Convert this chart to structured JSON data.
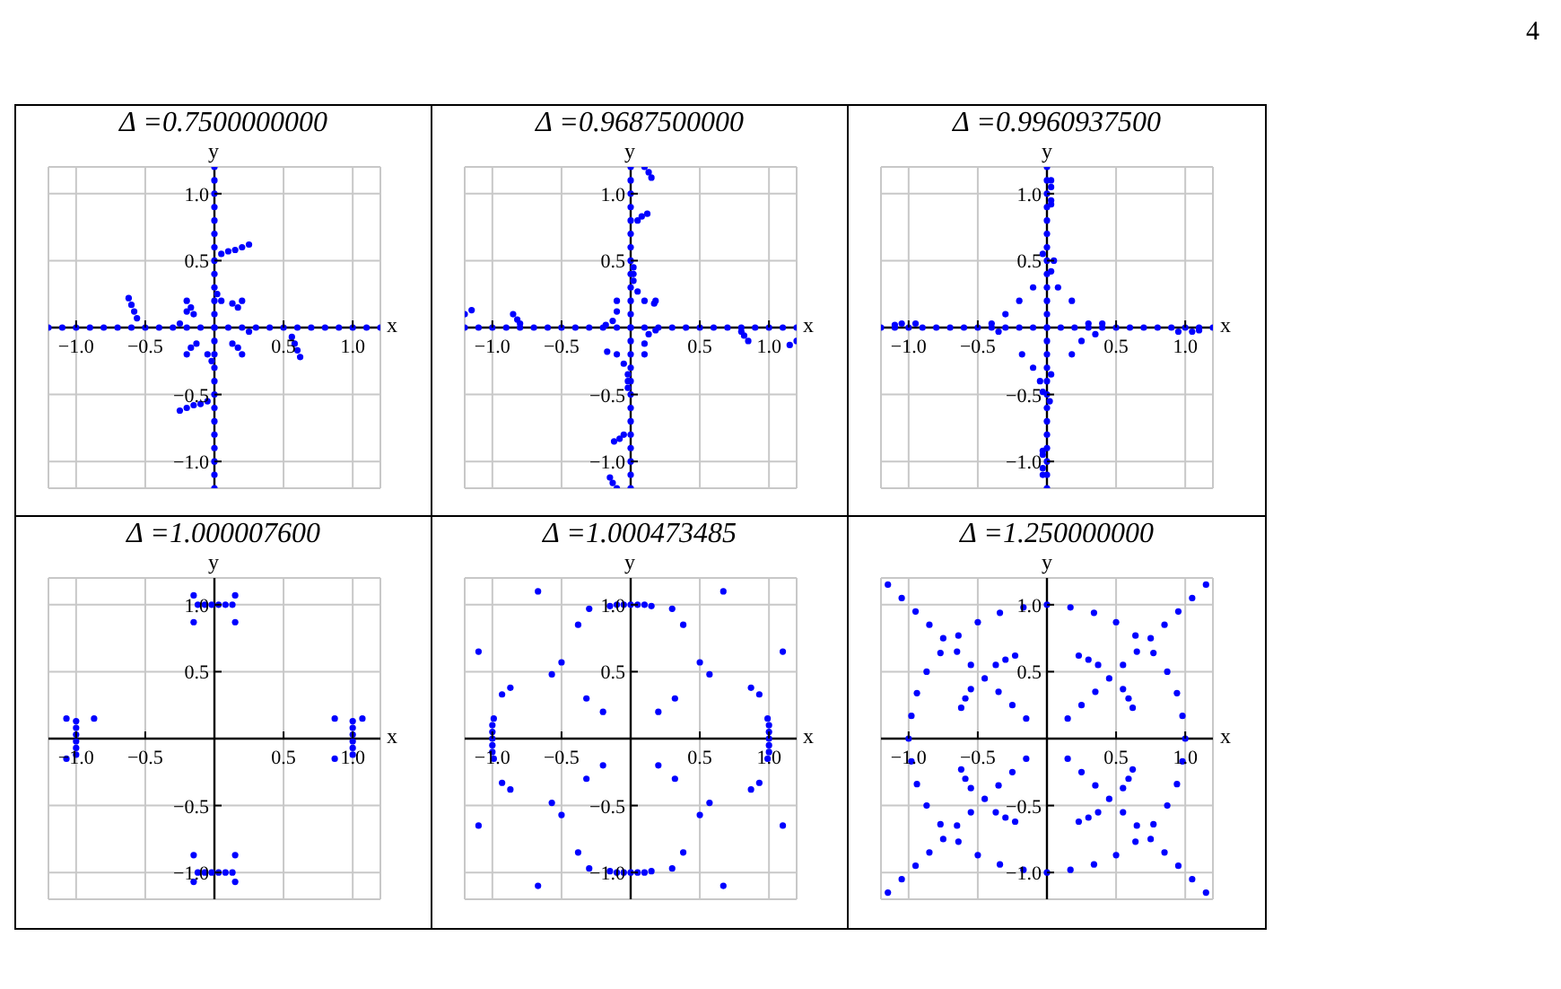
{
  "chart_data": [
    {
      "type": "scatter",
      "title": "Δ =0.7500000000",
      "xlabel": "x",
      "ylabel": "y",
      "annotations": [
        "4"
      ],
      "xlim": [
        -1.2,
        1.2
      ],
      "ylim": [
        -1.2,
        1.2
      ],
      "grid": true,
      "marker": "circle",
      "xticks": [
        {
          "value": -1,
          "label": "−1.0"
        },
        {
          "value": -0.5,
          "label": "−0.5"
        },
        {
          "value": 0.5,
          "label": "0.5"
        },
        {
          "value": 1,
          "label": "1.0"
        }
      ],
      "yticks": [
        {
          "value": -1,
          "label": "−1.0"
        },
        {
          "value": -0.5,
          "label": "−0.5"
        },
        {
          "value": 0.5,
          "label": "0.5"
        },
        {
          "value": 1,
          "label": "1.0"
        }
      ],
      "series": [
        {
          "color": "#0000ff",
          "x": [
            -1.2,
            -1.1,
            -1.0,
            -0.9,
            -0.8,
            -0.7,
            -0.6,
            -0.5,
            -0.4,
            -0.3,
            -0.2,
            -0.1,
            0,
            0.1,
            0.2,
            0.3,
            0.4,
            0.5,
            0.6,
            0.7,
            0.8,
            0.9,
            1.0,
            1.1,
            1.2
          ],
          "values": [
            0,
            0,
            0,
            0,
            0,
            0,
            0,
            0,
            0,
            0,
            0,
            0,
            0,
            0,
            0,
            0,
            0,
            0,
            0,
            0,
            0,
            0,
            0,
            0,
            0
          ]
        },
        {
          "color": "#0000ff",
          "x": [
            0,
            0,
            0,
            0,
            0,
            0,
            0,
            0,
            0,
            0,
            0,
            0,
            0,
            0,
            0,
            0,
            0,
            0,
            0,
            0,
            0,
            0,
            0,
            0,
            0
          ],
          "values": [
            -1.2,
            -1.1,
            -1.0,
            -0.9,
            -0.8,
            -0.7,
            -0.6,
            -0.5,
            -0.4,
            -0.3,
            -0.2,
            -0.1,
            0,
            0.1,
            0.2,
            0.3,
            0.4,
            0.5,
            0.6,
            0.7,
            0.8,
            0.9,
            1.0,
            1.1,
            1.2
          ]
        },
        {
          "color": "#0000ff",
          "x": [
            0.05,
            0.1,
            0.15,
            0.2,
            0.25,
            -0.05,
            -0.1,
            -0.15,
            -0.2,
            -0.25,
            -0.62,
            -0.6,
            -0.58,
            -0.56,
            0.62,
            0.6,
            0.58,
            0.56,
            -0.2,
            -0.17,
            -0.15,
            -0.2,
            0.2,
            0.17,
            0.13,
            0.02,
            0.05,
            -0.2,
            -0.17,
            -0.13,
            0.2,
            0.17,
            0.13,
            -0.02,
            -0.05,
            -0.25,
            0.25
          ],
          "values": [
            0.55,
            0.57,
            0.58,
            0.6,
            0.62,
            -0.55,
            -0.57,
            -0.58,
            -0.6,
            -0.62,
            0.22,
            0.17,
            0.12,
            0.07,
            -0.22,
            -0.17,
            -0.12,
            -0.07,
            0.2,
            0.15,
            0.1,
            0.12,
            0.2,
            0.15,
            0.18,
            0.25,
            0.2,
            -0.2,
            -0.15,
            -0.12,
            -0.2,
            -0.15,
            -0.12,
            -0.25,
            -0.2,
            0.03,
            -0.03
          ]
        }
      ]
    },
    {
      "type": "scatter",
      "title": "Δ =0.9687500000",
      "xlabel": "x",
      "ylabel": "y",
      "xlim": [
        -1.2,
        1.2
      ],
      "ylim": [
        -1.2,
        1.2
      ],
      "grid": true,
      "marker": "circle",
      "xticks": [
        {
          "value": -1,
          "label": "−1.0"
        },
        {
          "value": -0.5,
          "label": "−0.5"
        },
        {
          "value": 0.5,
          "label": "0.5"
        },
        {
          "value": 1,
          "label": "1.0"
        }
      ],
      "yticks": [
        {
          "value": -1,
          "label": "−1.0"
        },
        {
          "value": -0.5,
          "label": "−0.5"
        },
        {
          "value": 0.5,
          "label": "0.5"
        },
        {
          "value": 1,
          "label": "1.0"
        }
      ],
      "series": [
        {
          "color": "#0000ff",
          "x": [
            -1.2,
            -1.1,
            -1.0,
            -0.9,
            -0.8,
            -0.7,
            -0.6,
            -0.5,
            -0.4,
            -0.3,
            -0.2,
            -0.1,
            0,
            0.1,
            0.2,
            0.3,
            0.4,
            0.5,
            0.6,
            0.7,
            0.8,
            0.9,
            1.0,
            1.1,
            1.2
          ],
          "values": [
            0,
            0,
            0,
            0,
            0,
            0,
            0,
            0,
            0,
            0,
            0,
            0,
            0,
            0,
            0,
            0,
            0,
            0,
            0,
            0,
            0,
            0,
            0,
            0,
            0
          ]
        },
        {
          "color": "#0000ff",
          "x": [
            0,
            0,
            0,
            0,
            0,
            0,
            0,
            0,
            0,
            0,
            0,
            0,
            0,
            0,
            0,
            0,
            0,
            0,
            0,
            0,
            0,
            0,
            0,
            0,
            0
          ],
          "values": [
            -1.2,
            -1.1,
            -1.0,
            -0.9,
            -0.8,
            -0.7,
            -0.6,
            -0.5,
            -0.4,
            -0.3,
            -0.2,
            -0.1,
            0,
            0.1,
            0.2,
            0.3,
            0.4,
            0.5,
            0.6,
            0.7,
            0.8,
            0.9,
            1.0,
            1.1,
            1.2
          ]
        },
        {
          "color": "#0000ff",
          "x": [
            0.05,
            0.08,
            0.12,
            0.1,
            0.13,
            0.15,
            -0.05,
            -0.08,
            -0.12,
            -0.1,
            -0.13,
            -0.15,
            -1.2,
            -1.15,
            -0.85,
            -0.82,
            -0.8,
            0.8,
            0.82,
            0.85,
            1.15,
            1.2,
            0.1,
            0.17,
            0.18,
            0.05,
            0.02,
            -0.1,
            -0.1,
            -0.13,
            -0.18,
            -0.1,
            -0.17,
            -0.05,
            -0.02,
            0.1,
            0.1,
            0.13,
            0.18,
            0.02,
            -0.02,
            0.02,
            -0.02
          ],
          "values": [
            0.8,
            0.83,
            0.85,
            1.2,
            1.16,
            1.12,
            -0.8,
            -0.83,
            -0.85,
            -1.2,
            -1.16,
            -1.12,
            0.1,
            0.13,
            0.1,
            0.06,
            0.03,
            -0.03,
            -0.06,
            -0.1,
            -0.13,
            -0.1,
            0.2,
            0.18,
            0.2,
            0.27,
            0.35,
            0.2,
            0.12,
            0.05,
            0.02,
            -0.2,
            -0.18,
            -0.27,
            -0.35,
            -0.2,
            -0.12,
            -0.05,
            -0.02,
            0.4,
            -0.4,
            0.45,
            -0.45
          ]
        }
      ]
    },
    {
      "type": "scatter",
      "title": "Δ =0.9960937500",
      "xlabel": "x",
      "ylabel": "y",
      "xlim": [
        -1.2,
        1.2
      ],
      "ylim": [
        -1.2,
        1.2
      ],
      "grid": true,
      "marker": "circle",
      "xticks": [
        {
          "value": -1,
          "label": "−1.0"
        },
        {
          "value": -0.5,
          "label": "−0.5"
        },
        {
          "value": 0.5,
          "label": "0.5"
        },
        {
          "value": 1,
          "label": "1.0"
        }
      ],
      "yticks": [
        {
          "value": -1,
          "label": "−1.0"
        },
        {
          "value": -0.5,
          "label": "−0.5"
        },
        {
          "value": 0.5,
          "label": "0.5"
        },
        {
          "value": 1,
          "label": "1.0"
        }
      ],
      "series": [
        {
          "color": "#0000ff",
          "x": [
            -1.2,
            -1.1,
            -1.0,
            -0.9,
            -0.8,
            -0.7,
            -0.6,
            -0.5,
            -0.4,
            -0.3,
            -0.2,
            -0.1,
            0,
            0.1,
            0.2,
            0.3,
            0.4,
            0.5,
            0.6,
            0.7,
            0.8,
            0.9,
            1.0,
            1.1,
            1.2
          ],
          "values": [
            0,
            0,
            0,
            0,
            0,
            0,
            0,
            0,
            0,
            0,
            0,
            0,
            0,
            0,
            0,
            0,
            0,
            0,
            0,
            0,
            0,
            0,
            0,
            0,
            0
          ]
        },
        {
          "color": "#0000ff",
          "x": [
            0,
            0,
            0,
            0,
            0,
            0,
            0,
            0,
            0,
            0,
            0,
            0,
            0,
            0,
            0,
            0,
            0,
            0,
            0,
            0,
            0,
            0,
            0,
            0,
            0
          ],
          "values": [
            -1.2,
            -1.1,
            -1.0,
            -0.9,
            -0.8,
            -0.7,
            -0.6,
            -0.5,
            -0.4,
            -0.3,
            -0.2,
            -0.1,
            0,
            0.1,
            0.2,
            0.3,
            0.4,
            0.5,
            0.6,
            0.7,
            0.8,
            0.9,
            1.0,
            1.1,
            1.2
          ]
        },
        {
          "color": "#0000ff",
          "x": [
            0.03,
            0.03,
            0.03,
            0.03,
            -0.03,
            -0.03,
            -0.03,
            -0.03,
            -1.05,
            -1.1,
            -0.95,
            1.05,
            1.1,
            0.95,
            0.08,
            0.18,
            -0.1,
            -0.2,
            -0.3,
            -0.4,
            0.3,
            0.4,
            -0.18,
            -0.1,
            -0.05,
            0.18,
            0.25,
            0.35,
            -0.35,
            0.05,
            -0.03,
            0.03,
            0.02,
            0.03,
            -0.03
          ],
          "values": [
            1.1,
            1.05,
            0.95,
            0.92,
            -1.1,
            -1.05,
            -0.95,
            -0.92,
            0.03,
            0.02,
            0.03,
            -0.03,
            -0.02,
            -0.03,
            0.3,
            0.2,
            0.3,
            0.2,
            0.1,
            0.03,
            0.03,
            0.03,
            -0.2,
            -0.3,
            -0.4,
            -0.2,
            -0.1,
            -0.05,
            -0.03,
            0.5,
            0.55,
            -0.35,
            -0.55,
            0.42,
            -0.48
          ]
        }
      ]
    },
    {
      "type": "scatter",
      "title": "Δ =1.000007600",
      "xlabel": "x",
      "ylabel": "y",
      "xlim": [
        -1.2,
        1.2
      ],
      "ylim": [
        -1.2,
        1.2
      ],
      "grid": true,
      "marker": "circle",
      "xticks": [
        {
          "value": -1,
          "label": "−1.0"
        },
        {
          "value": -0.5,
          "label": "−0.5"
        },
        {
          "value": 0.5,
          "label": "0.5"
        },
        {
          "value": 1,
          "label": "1.0"
        }
      ],
      "yticks": [
        {
          "value": -1,
          "label": "−1.0"
        },
        {
          "value": -0.5,
          "label": "−0.5"
        },
        {
          "value": 0.5,
          "label": "0.5"
        },
        {
          "value": 1,
          "label": "1.0"
        }
      ],
      "series": [
        {
          "color": "#0000ff",
          "x": [
            -0.12,
            -0.07,
            -0.02,
            0.03,
            0.08,
            0.13,
            -0.12,
            -0.07,
            -0.02,
            0.03,
            0.08,
            0.13,
            1,
            1,
            1,
            1,
            1,
            1,
            -1,
            -1,
            -1,
            -1,
            -1,
            -1,
            -0.15,
            0.15,
            -0.15,
            0.15,
            -0.15,
            0.15,
            -0.15,
            0.15,
            -1.07,
            -0.87,
            -1.07,
            0.87,
            1.07,
            0.87
          ],
          "values": [
            1,
            1,
            1,
            1,
            1,
            1,
            -1,
            -1,
            -1,
            -1,
            -1,
            -1,
            -0.12,
            -0.07,
            -0.02,
            0.03,
            0.08,
            0.13,
            -0.12,
            -0.07,
            -0.02,
            0.03,
            0.08,
            0.13,
            1.07,
            1.07,
            0.87,
            0.87,
            -1.07,
            -1.07,
            -0.87,
            -0.87,
            0.15,
            0.15,
            -0.15,
            0.15,
            0.15,
            -0.15
          ]
        }
      ]
    },
    {
      "type": "scatter",
      "title": "Δ =1.000473485",
      "xlabel": "x",
      "ylabel": "y",
      "xlim": [
        -1.2,
        1.2
      ],
      "ylim": [
        -1.2,
        1.2
      ],
      "grid": true,
      "marker": "circle",
      "xticks": [
        {
          "value": -1,
          "label": "−1.0"
        },
        {
          "value": -0.5,
          "label": "−0.5"
        },
        {
          "value": 0.5,
          "label": "0.5"
        },
        {
          "value": 1,
          "label": "1.0"
        }
      ],
      "yticks": [
        {
          "value": -1,
          "label": "−1.0"
        },
        {
          "value": -0.5,
          "label": "−0.5"
        },
        {
          "value": 0.5,
          "label": "0.5"
        },
        {
          "value": 1,
          "label": "1.0"
        }
      ],
      "series": [
        {
          "color": "#0000ff",
          "x": [
            -0.15,
            -0.1,
            -0.05,
            0,
            0.05,
            0.1,
            0.15,
            -0.15,
            -0.1,
            -0.05,
            0,
            0.05,
            0.1,
            0.15,
            0.99,
            1,
            1,
            1,
            1,
            1,
            0.99,
            -0.99,
            -1,
            -1,
            -1,
            -1,
            -1,
            -0.99
          ],
          "values": [
            0.99,
            1,
            1,
            1,
            1,
            1,
            0.99,
            -0.99,
            -1,
            -1,
            -1,
            -1,
            -1,
            -0.99,
            -0.15,
            -0.1,
            -0.05,
            0,
            0.05,
            0.1,
            0.15,
            -0.15,
            -0.1,
            -0.05,
            0,
            0.05,
            0.1,
            0.15
          ]
        },
        {
          "color": "#0000ff",
          "x": [
            0.67,
            -0.67,
            0.67,
            -0.67,
            1.1,
            -1.1,
            1.1,
            -1.1,
            0.5,
            -0.5,
            0.5,
            -0.5,
            0.57,
            -0.57,
            0.57,
            -0.57,
            0.32,
            -0.32,
            0.32,
            -0.32,
            0.2,
            -0.2,
            0.2,
            -0.2,
            0.38,
            -0.38,
            0.38,
            -0.38,
            0.87,
            -0.87,
            0.87,
            -0.87,
            0.93,
            -0.93,
            0.93,
            -0.93,
            0.3,
            -0.3,
            0.3,
            -0.3
          ],
          "values": [
            1.1,
            1.1,
            -1.1,
            -1.1,
            0.65,
            0.65,
            -0.65,
            -0.65,
            0.57,
            0.57,
            -0.57,
            -0.57,
            0.48,
            0.48,
            -0.48,
            -0.48,
            0.3,
            0.3,
            -0.3,
            -0.3,
            0.2,
            0.2,
            -0.2,
            -0.2,
            0.85,
            0.85,
            -0.85,
            -0.85,
            0.38,
            0.38,
            -0.38,
            -0.38,
            0.33,
            0.33,
            -0.33,
            -0.33,
            0.97,
            0.97,
            -0.97,
            -0.97
          ]
        }
      ]
    },
    {
      "type": "scatter",
      "title": "Δ =1.250000000",
      "xlabel": "x",
      "ylabel": "y",
      "xlim": [
        -1.2,
        1.2
      ],
      "ylim": [
        -1.2,
        1.2
      ],
      "grid": true,
      "marker": "circle",
      "xticks": [
        {
          "value": -1,
          "label": "−1.0"
        },
        {
          "value": -0.5,
          "label": "−0.5"
        },
        {
          "value": 0.5,
          "label": "0.5"
        },
        {
          "value": 1,
          "label": "1.0"
        }
      ],
      "yticks": [
        {
          "value": -1,
          "label": "−1.0"
        },
        {
          "value": -0.5,
          "label": "−0.5"
        },
        {
          "value": 0.5,
          "label": "0.5"
        },
        {
          "value": 1,
          "label": "1.0"
        }
      ],
      "series": [
        {
          "color": "#0000ff",
          "x": [
            1,
            0.98,
            0.94,
            0.87,
            0.77,
            0.64,
            0.5,
            0.34,
            0.17,
            0,
            -0.17,
            -0.34,
            -0.5,
            -0.64,
            -0.77,
            -0.87,
            -0.94,
            -0.98,
            -1,
            -0.98,
            -0.94,
            -0.87,
            -0.77,
            -0.64,
            -0.5,
            -0.34,
            -0.17,
            0,
            0.17,
            0.34,
            0.5,
            0.64,
            0.77,
            0.87,
            0.94,
            0.98
          ],
          "values": [
            0,
            0.17,
            0.34,
            0.5,
            0.64,
            0.77,
            0.87,
            0.94,
            0.98,
            1,
            0.98,
            0.94,
            0.87,
            0.77,
            0.64,
            0.5,
            0.34,
            0.17,
            0,
            -0.17,
            -0.34,
            -0.5,
            -0.64,
            -0.77,
            -0.87,
            -0.94,
            -0.98,
            -1,
            -0.98,
            -0.94,
            -0.87,
            -0.77,
            -0.64,
            -0.5,
            -0.34,
            -0.17
          ]
        },
        {
          "color": "#0000ff",
          "x": [
            0.15,
            0.25,
            0.35,
            0.45,
            0.55,
            0.65,
            0.75,
            0.85,
            0.95,
            1.05,
            1.15,
            -0.15,
            -0.25,
            -0.35,
            -0.45,
            -0.55,
            -0.65,
            -0.75,
            -0.85,
            -0.95,
            -1.05,
            -1.15,
            -0.15,
            -0.25,
            -0.35,
            -0.45,
            -0.55,
            -0.65,
            -0.75,
            -0.85,
            -0.95,
            -1.05,
            -1.15,
            0.15,
            0.25,
            0.35,
            0.45,
            0.55,
            0.65,
            0.75,
            0.85,
            0.95,
            1.05,
            1.15
          ],
          "values": [
            0.15,
            0.25,
            0.35,
            0.45,
            0.55,
            0.65,
            0.75,
            0.85,
            0.95,
            1.05,
            1.15,
            0.15,
            0.25,
            0.35,
            0.45,
            0.55,
            0.65,
            0.75,
            0.85,
            0.95,
            1.05,
            1.15,
            -0.15,
            -0.25,
            -0.35,
            -0.45,
            -0.55,
            -0.65,
            -0.75,
            -0.85,
            -0.95,
            -1.05,
            -1.15,
            -0.15,
            -0.25,
            -0.35,
            -0.45,
            -0.55,
            -0.65,
            -0.75,
            -0.85,
            -0.95,
            -1.05,
            -1.15
          ]
        },
        {
          "color": "#0000ff",
          "x": [
            0.62,
            0.59,
            0.55,
            0.37,
            0.3,
            0.23,
            -0.62,
            -0.59,
            -0.55,
            -0.37,
            -0.3,
            -0.23,
            -0.62,
            -0.59,
            -0.55,
            -0.37,
            -0.3,
            -0.23,
            0.62,
            0.59,
            0.55,
            0.37,
            0.3,
            0.23
          ],
          "values": [
            0.23,
            0.3,
            0.37,
            0.55,
            0.59,
            0.62,
            0.23,
            0.3,
            0.37,
            0.55,
            0.59,
            0.62,
            -0.23,
            -0.3,
            -0.37,
            -0.55,
            -0.59,
            -0.62,
            -0.23,
            -0.3,
            -0.37,
            -0.55,
            -0.59,
            -0.62
          ]
        }
      ]
    }
  ]
}
